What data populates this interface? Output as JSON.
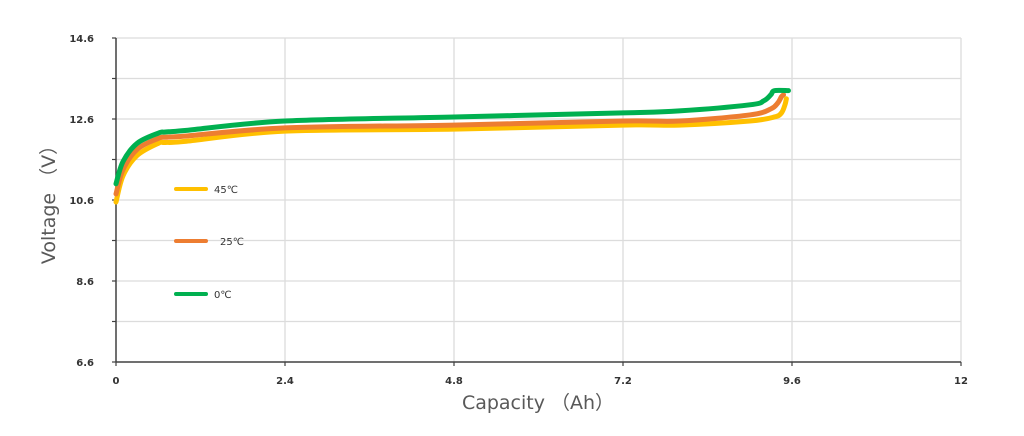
{
  "chart_data": {
    "type": "line",
    "title": "",
    "xlabel": "Capacity （Ah）",
    "ylabel": "Voltage （V）",
    "xlim": [
      0,
      12
    ],
    "ylim": [
      6.6,
      14.6
    ],
    "x_ticks": [
      "0",
      "2.4",
      "4.8",
      "7.2",
      "9.6",
      "12"
    ],
    "y_ticks": [
      "6.6",
      "8.6",
      "10.6",
      "12.6",
      "14.6"
    ],
    "grid": true,
    "legend_position": "inside-left",
    "series": [
      {
        "name": "45℃",
        "color": "#FFC000",
        "x": [
          0.0,
          0.1,
          0.3,
          0.6,
          0.7,
          1.0,
          2.4,
          4.8,
          7.2,
          8.0,
          9.0,
          9.35,
          9.45,
          9.5,
          9.52
        ],
        "y": [
          10.55,
          11.2,
          11.7,
          12.0,
          12.02,
          12.05,
          12.3,
          12.35,
          12.45,
          12.45,
          12.55,
          12.65,
          12.75,
          12.95,
          13.1
        ]
      },
      {
        "name": "25℃",
        "color": "#ED7D31",
        "x": [
          0.0,
          0.1,
          0.3,
          0.6,
          0.7,
          1.0,
          2.4,
          4.8,
          7.2,
          8.0,
          9.0,
          9.3,
          9.4,
          9.45,
          9.48
        ],
        "y": [
          10.75,
          11.35,
          11.85,
          12.12,
          12.15,
          12.18,
          12.38,
          12.45,
          12.55,
          12.55,
          12.7,
          12.85,
          13.0,
          13.15,
          13.2
        ]
      },
      {
        "name": "0℃",
        "color": "#00B050",
        "x": [
          0.0,
          0.1,
          0.3,
          0.6,
          0.7,
          1.0,
          2.4,
          4.8,
          7.2,
          8.0,
          9.0,
          9.2,
          9.3,
          9.35,
          9.55
        ],
        "y": [
          11.0,
          11.55,
          12.0,
          12.25,
          12.28,
          12.32,
          12.55,
          12.65,
          12.75,
          12.8,
          12.95,
          13.05,
          13.2,
          13.3,
          13.3
        ]
      }
    ]
  }
}
